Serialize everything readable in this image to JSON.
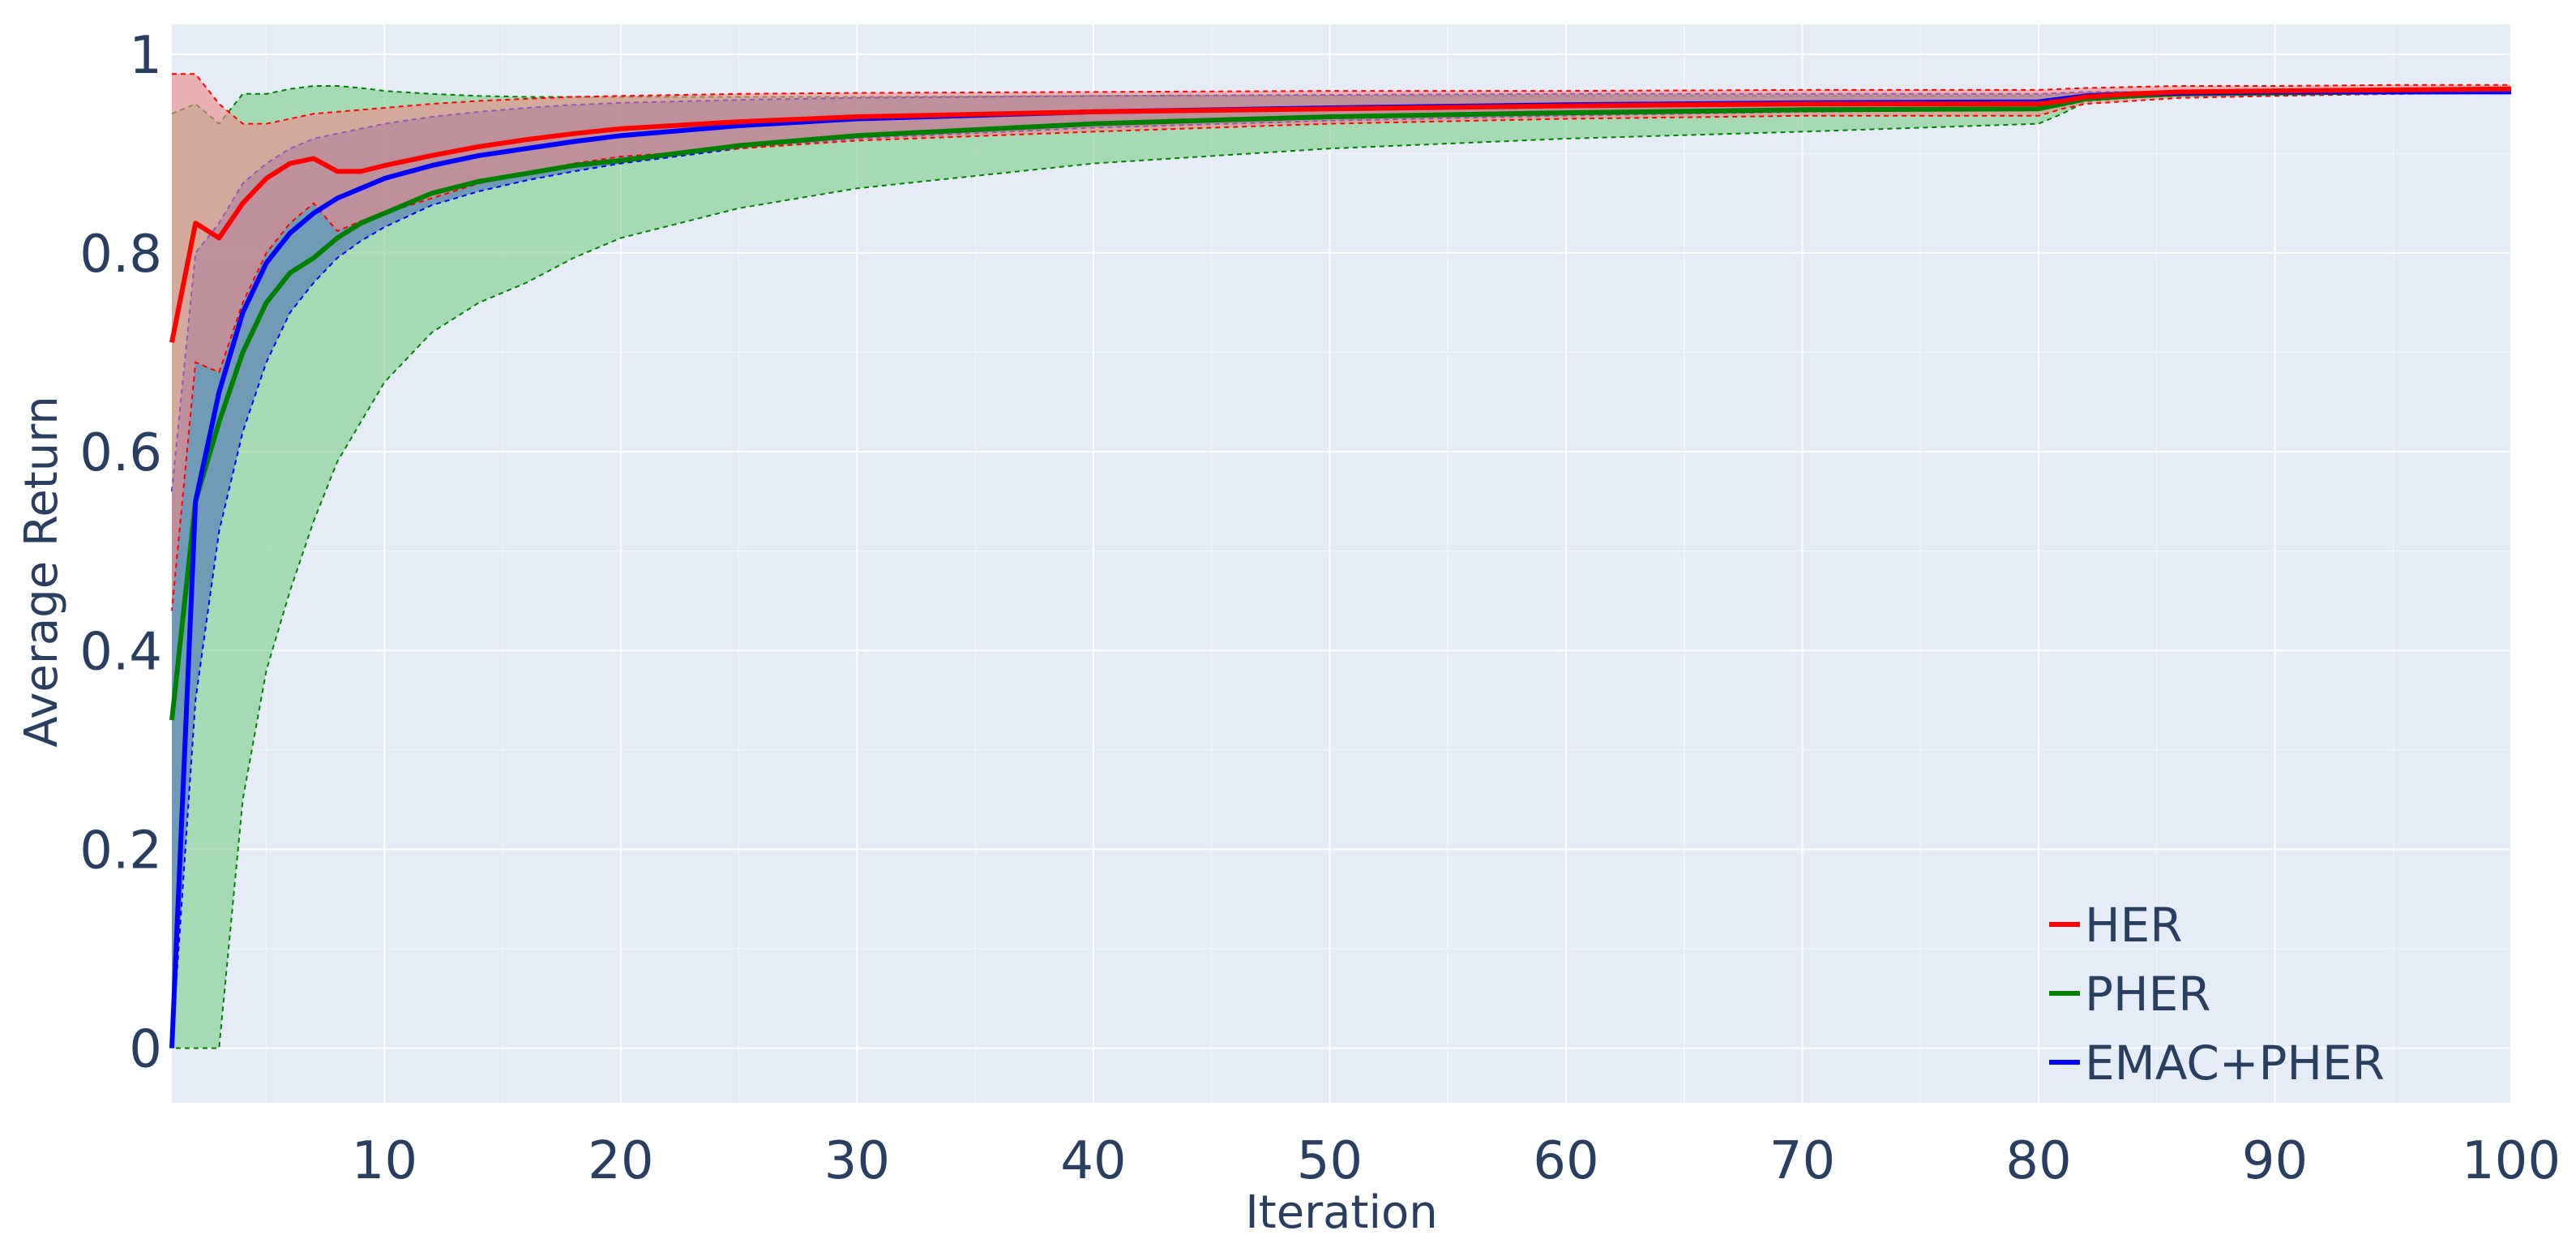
{
  "chart_data": {
    "type": "line",
    "xlabel": "Iteration",
    "ylabel": "Average Return",
    "xlim": [
      1,
      100
    ],
    "ylim": [
      -0.055,
      1.03
    ],
    "x_ticks": [
      10,
      20,
      30,
      40,
      50,
      60,
      70,
      80,
      90,
      100
    ],
    "y_ticks": [
      0,
      0.2,
      0.4,
      0.6,
      0.8,
      1
    ],
    "grid": true,
    "legend_position": "bottom-right",
    "background": "#e5ecf6",
    "series": [
      {
        "name": "HER",
        "color": "#ff0000",
        "band_color": "#ef8a8a",
        "x": [
          1,
          2,
          3,
          4,
          5,
          6,
          7,
          8,
          9,
          10,
          12,
          14,
          16,
          18,
          20,
          25,
          30,
          40,
          50,
          60,
          70,
          80,
          81,
          82,
          84,
          86,
          90,
          95,
          100
        ],
        "mean": [
          0.71,
          0.83,
          0.815,
          0.85,
          0.875,
          0.89,
          0.895,
          0.882,
          0.882,
          0.888,
          0.898,
          0.907,
          0.914,
          0.92,
          0.925,
          0.932,
          0.937,
          0.942,
          0.945,
          0.948,
          0.95,
          0.95,
          0.953,
          0.957,
          0.96,
          0.962,
          0.963,
          0.964,
          0.965
        ],
        "upper": [
          0.98,
          0.98,
          0.95,
          0.93,
          0.93,
          0.935,
          0.94,
          0.942,
          0.944,
          0.946,
          0.95,
          0.953,
          0.955,
          0.957,
          0.958,
          0.96,
          0.961,
          0.962,
          0.963,
          0.963,
          0.964,
          0.964,
          0.965,
          0.966,
          0.967,
          0.968,
          0.968,
          0.969,
          0.969
        ],
        "lower": [
          0.44,
          0.69,
          0.68,
          0.75,
          0.8,
          0.83,
          0.85,
          0.822,
          0.832,
          0.84,
          0.855,
          0.87,
          0.88,
          0.89,
          0.897,
          0.905,
          0.913,
          0.922,
          0.93,
          0.935,
          0.938,
          0.938,
          0.945,
          0.95,
          0.953,
          0.956,
          0.958,
          0.96,
          0.961
        ]
      },
      {
        "name": "PHER",
        "color": "#008000",
        "band_color": "#7fcf8c",
        "x": [
          1,
          2,
          3,
          4,
          5,
          6,
          7,
          8,
          9,
          10,
          12,
          14,
          16,
          18,
          20,
          25,
          30,
          40,
          50,
          60,
          70,
          80,
          81,
          82,
          84,
          86,
          90,
          95,
          100
        ],
        "mean": [
          0.33,
          0.55,
          0.63,
          0.7,
          0.75,
          0.78,
          0.795,
          0.815,
          0.83,
          0.84,
          0.86,
          0.872,
          0.88,
          0.888,
          0.893,
          0.908,
          0.918,
          0.93,
          0.937,
          0.941,
          0.944,
          0.945,
          0.95,
          0.955,
          0.958,
          0.96,
          0.961,
          0.962,
          0.963
        ],
        "upper": [
          0.94,
          0.95,
          0.93,
          0.96,
          0.96,
          0.965,
          0.968,
          0.968,
          0.966,
          0.963,
          0.96,
          0.958,
          0.957,
          0.957,
          0.957,
          0.957,
          0.957,
          0.958,
          0.958,
          0.958,
          0.958,
          0.958,
          0.96,
          0.961,
          0.962,
          0.962,
          0.963,
          0.963,
          0.963
        ],
        "lower": [
          0.0,
          0.0,
          0.0,
          0.25,
          0.38,
          0.46,
          0.53,
          0.59,
          0.63,
          0.67,
          0.72,
          0.75,
          0.77,
          0.795,
          0.815,
          0.845,
          0.865,
          0.89,
          0.905,
          0.915,
          0.922,
          0.93,
          0.94,
          0.952,
          0.956,
          0.958,
          0.96,
          0.961,
          0.962
        ]
      },
      {
        "name": "EMAC+PHER",
        "color": "#0000ff",
        "band_color": "#4f72b5",
        "x": [
          1,
          2,
          3,
          4,
          5,
          6,
          7,
          8,
          9,
          10,
          12,
          14,
          16,
          18,
          20,
          25,
          30,
          40,
          50,
          60,
          70,
          80,
          81,
          82,
          84,
          86,
          90,
          95,
          100
        ],
        "mean": [
          0.0,
          0.55,
          0.66,
          0.74,
          0.79,
          0.82,
          0.84,
          0.855,
          0.865,
          0.875,
          0.888,
          0.898,
          0.905,
          0.912,
          0.918,
          0.928,
          0.935,
          0.942,
          0.946,
          0.949,
          0.951,
          0.952,
          0.955,
          0.958,
          0.96,
          0.961,
          0.962,
          0.962,
          0.962
        ],
        "upper": [
          0.56,
          0.8,
          0.83,
          0.87,
          0.89,
          0.905,
          0.915,
          0.92,
          0.925,
          0.93,
          0.937,
          0.942,
          0.946,
          0.949,
          0.951,
          0.954,
          0.956,
          0.958,
          0.959,
          0.96,
          0.96,
          0.96,
          0.961,
          0.962,
          0.962,
          0.963,
          0.963,
          0.963,
          0.963
        ],
        "lower": [
          0.0,
          0.35,
          0.52,
          0.62,
          0.69,
          0.74,
          0.77,
          0.795,
          0.812,
          0.826,
          0.848,
          0.862,
          0.873,
          0.882,
          0.89,
          0.905,
          0.915,
          0.926,
          0.933,
          0.938,
          0.942,
          0.944,
          0.948,
          0.953,
          0.957,
          0.958,
          0.96,
          0.96,
          0.961
        ]
      }
    ]
  }
}
